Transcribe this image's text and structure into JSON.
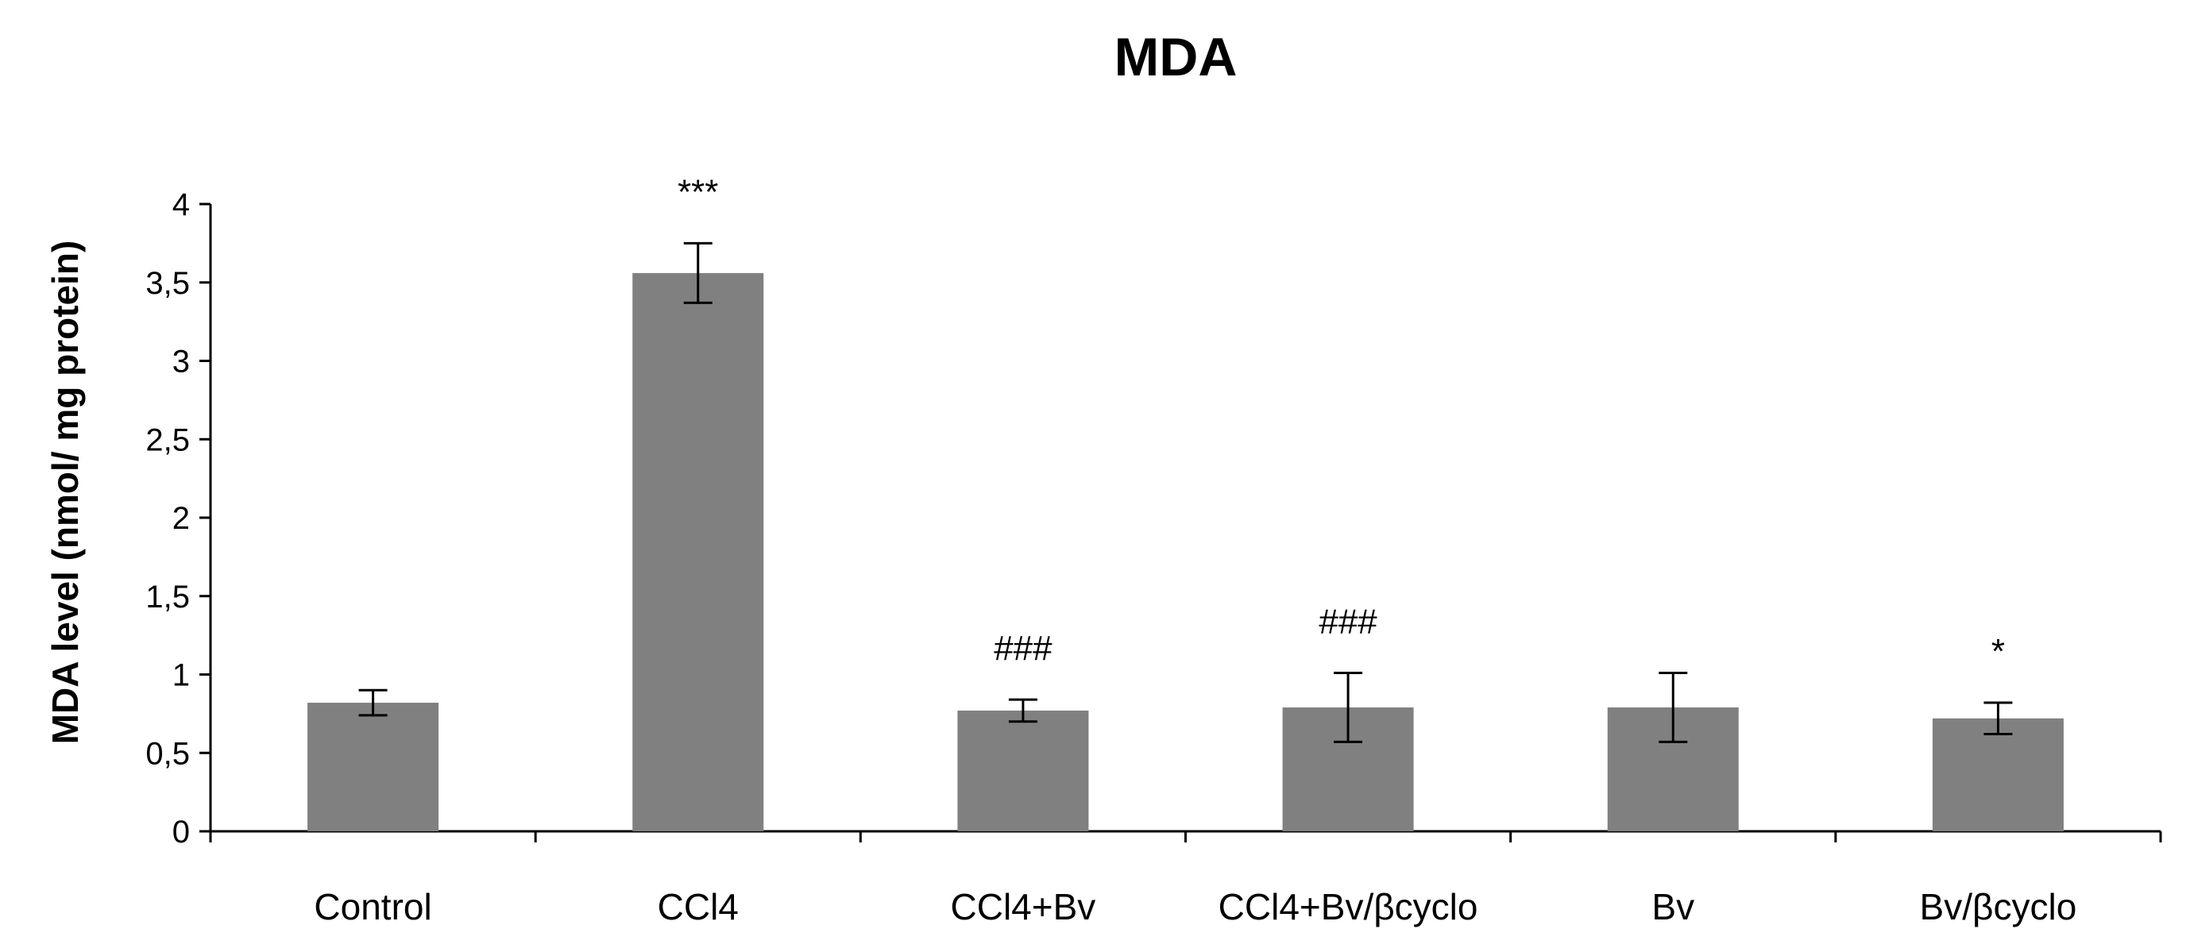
{
  "chart_data": {
    "type": "bar",
    "title": "MDA",
    "xlabel": "",
    "ylabel": "MDA level (nmol/ mg protein)",
    "categories": [
      "Control",
      "CCl4",
      "CCl4+Bv",
      "CCl4+Bv/βcyclo",
      "Bv",
      "Bv/βcyclo"
    ],
    "values": [
      0.82,
      3.56,
      0.77,
      0.79,
      0.79,
      0.72
    ],
    "errors": [
      0.08,
      0.19,
      0.07,
      0.22,
      0.22,
      0.1
    ],
    "annotations": [
      "",
      "***",
      "###",
      "###",
      "",
      "*"
    ],
    "yticks": [
      "0",
      "0,5",
      "1",
      "1,5",
      "2",
      "2,5",
      "3",
      "3,5",
      "4"
    ],
    "ylim": [
      0,
      4
    ],
    "grid": false,
    "legend": "none",
    "bar_color": "#808080",
    "axis_color": "#000000"
  }
}
